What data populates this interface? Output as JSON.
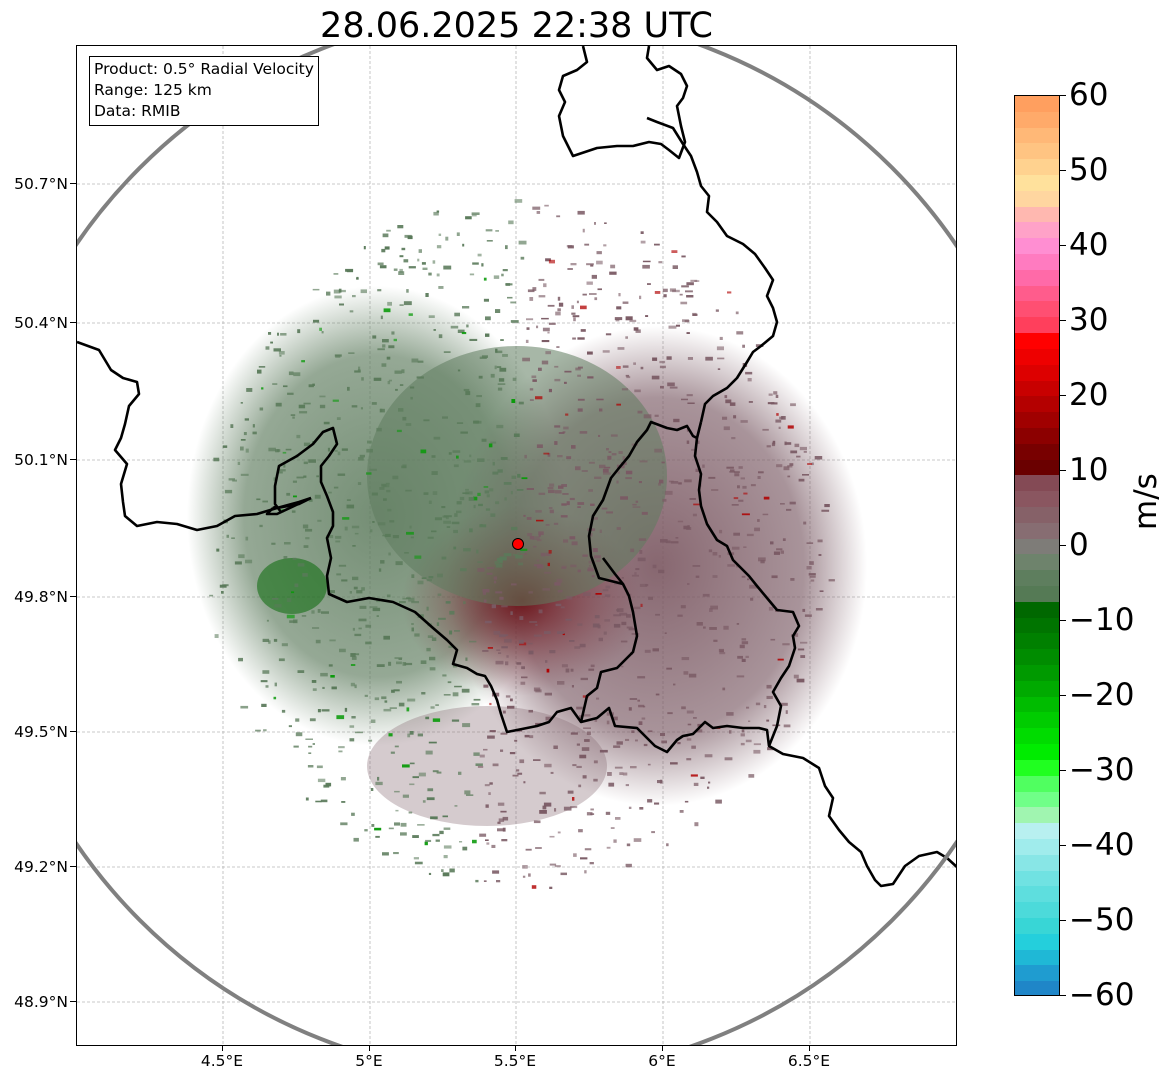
{
  "title": "28.06.2025 22:38 UTC",
  "info": {
    "product": "Product: 0.5° Radial Velocity",
    "range": "Range: 125 km",
    "data": "Data: RMIB"
  },
  "map": {
    "radar_site": {
      "lon": 5.51,
      "lat": 49.91
    },
    "range_ring_color": "#808080",
    "border_color": "#000000",
    "gridline_color": "#b0b0b0",
    "lat_ticks": [
      "50.7°N",
      "50.4°N",
      "50.1°N",
      "49.8°N",
      "49.5°N",
      "49.2°N",
      "48.9°N"
    ],
    "lon_ticks": [
      "4.5°E",
      "5°E",
      "5.5°E",
      "6°E",
      "6.5°E"
    ],
    "echo_colors": {
      "approaching": "#5a7a5a",
      "receding": "#7a5a64",
      "strong_approaching": "#0a9a0a",
      "strong_receding": "#b00000"
    }
  },
  "colorbar": {
    "unit": "m/s",
    "min": -60,
    "max": 60,
    "tick_labels": [
      "60",
      "50",
      "40",
      "30",
      "20",
      "10",
      "0",
      "−10",
      "−20",
      "−30",
      "−40",
      "−50",
      "−60"
    ],
    "colors_top_to_bottom": [
      "#ff9f5f",
      "#ffaa6a",
      "#ffb877",
      "#ffc482",
      "#ffd28f",
      "#ffe19c",
      "#ffd6a0",
      "#ffb8b0",
      "#ffa2c8",
      "#ff8ed2",
      "#ff7bc0",
      "#ff6aa8",
      "#ff5c8c",
      "#ff4f72",
      "#ff3f5c",
      "#ff0000",
      "#ee0000",
      "#dd0000",
      "#c80000",
      "#b40000",
      "#a00000",
      "#8c0000",
      "#780000",
      "#6a0000",
      "#844a55",
      "#8a5660",
      "#866168",
      "#876d72",
      "#7e7c78",
      "#6e836c",
      "#5e7e5e",
      "#557a55",
      "#006800",
      "#007400",
      "#008000",
      "#008c00",
      "#009a00",
      "#00aa00",
      "#00bc00",
      "#00cc00",
      "#00dc00",
      "#00ec00",
      "#20ff20",
      "#50ff60",
      "#70ff88",
      "#a0f5b0",
      "#b8f0f0",
      "#a0ecec",
      "#88e6e6",
      "#70e2e2",
      "#5edede",
      "#4cdada",
      "#38d6d6",
      "#24cfdc",
      "#1fb8d6",
      "#1f9cd0",
      "#1f86c8"
    ]
  }
}
